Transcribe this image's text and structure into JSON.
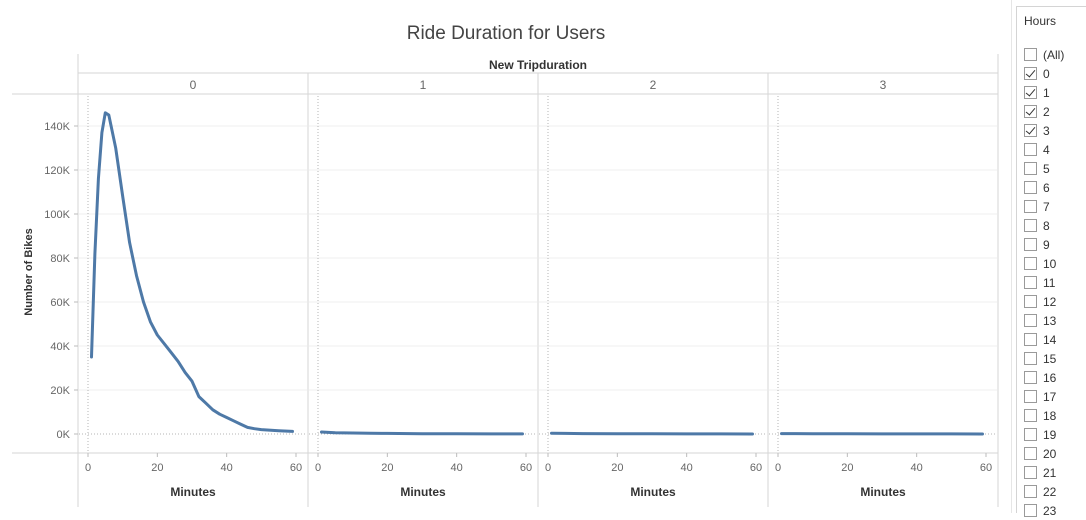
{
  "filter": {
    "title": "Hours",
    "items": [
      {
        "label": "(All)",
        "checked": false
      },
      {
        "label": "0",
        "checked": true
      },
      {
        "label": "1",
        "checked": true
      },
      {
        "label": "2",
        "checked": true
      },
      {
        "label": "3",
        "checked": true
      },
      {
        "label": "4",
        "checked": false
      },
      {
        "label": "5",
        "checked": false
      },
      {
        "label": "6",
        "checked": false
      },
      {
        "label": "7",
        "checked": false
      },
      {
        "label": "8",
        "checked": false
      },
      {
        "label": "9",
        "checked": false
      },
      {
        "label": "10",
        "checked": false
      },
      {
        "label": "11",
        "checked": false
      },
      {
        "label": "12",
        "checked": false
      },
      {
        "label": "13",
        "checked": false
      },
      {
        "label": "14",
        "checked": false
      },
      {
        "label": "15",
        "checked": false
      },
      {
        "label": "16",
        "checked": false
      },
      {
        "label": "17",
        "checked": false
      },
      {
        "label": "18",
        "checked": false
      },
      {
        "label": "19",
        "checked": false
      },
      {
        "label": "20",
        "checked": false
      },
      {
        "label": "21",
        "checked": false
      },
      {
        "label": "22",
        "checked": false
      },
      {
        "label": "23",
        "checked": false
      }
    ]
  },
  "chart_data": {
    "type": "line",
    "title": "Ride Duration for Users",
    "column_header": "New Tripduration",
    "xlabel": "Minutes",
    "ylabel": "Number of Bikes",
    "xlim": [
      0,
      60
    ],
    "ylim": [
      0,
      150000
    ],
    "x_ticks": [
      0,
      20,
      40,
      60
    ],
    "x_tick_labels": [
      "0",
      "20",
      "40",
      "60"
    ],
    "y_ticks": [
      0,
      20000,
      40000,
      60000,
      80000,
      100000,
      120000,
      140000
    ],
    "y_tick_labels": [
      "0K",
      "20K",
      "40K",
      "60K",
      "80K",
      "100K",
      "120K",
      "140K"
    ],
    "grid": true,
    "line_color": "#4e79a7",
    "panels": [
      {
        "label": "0",
        "x": [
          1,
          2,
          3,
          4,
          5,
          6,
          8,
          10,
          12,
          14,
          16,
          18,
          20,
          22,
          24,
          26,
          28,
          30,
          32,
          34,
          36,
          38,
          40,
          42,
          44,
          46,
          48,
          50,
          55,
          59
        ],
        "y": [
          35000,
          82000,
          116000,
          137000,
          146000,
          145000,
          130000,
          108000,
          87000,
          72000,
          60000,
          51000,
          45000,
          41000,
          37000,
          33000,
          28000,
          24000,
          17000,
          14000,
          11000,
          9000,
          7500,
          6000,
          4500,
          3000,
          2400,
          2000,
          1500,
          1200
        ]
      },
      {
        "label": "1",
        "x": [
          1,
          5,
          10,
          15,
          20,
          30,
          40,
          50,
          59
        ],
        "y": [
          900,
          600,
          450,
          350,
          250,
          150,
          100,
          60,
          40
        ]
      },
      {
        "label": "2",
        "x": [
          1,
          5,
          10,
          20,
          30,
          40,
          50,
          59
        ],
        "y": [
          300,
          250,
          180,
          120,
          80,
          50,
          30,
          20
        ]
      },
      {
        "label": "3",
        "x": [
          1,
          5,
          10,
          20,
          30,
          40,
          50,
          59
        ],
        "y": [
          200,
          180,
          130,
          90,
          60,
          40,
          25,
          15
        ]
      }
    ]
  }
}
